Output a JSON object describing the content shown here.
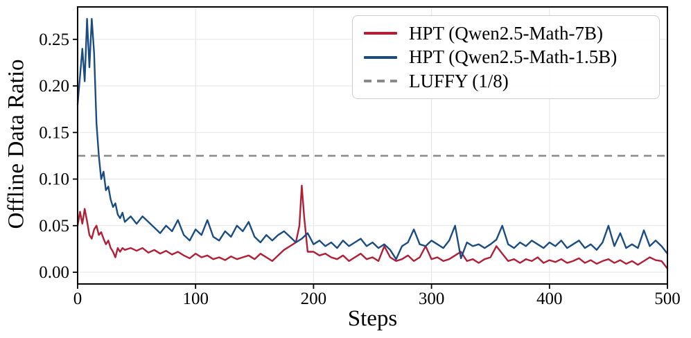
{
  "chart_data": {
    "type": "line",
    "title": "",
    "xlabel": "Steps",
    "ylabel": "Offline Data Ratio",
    "xlim": [
      0,
      500
    ],
    "ylim": [
      -0.0126,
      0.2848
    ],
    "grid": true,
    "legend_position": "upper right",
    "xticks": {
      "values": [
        0,
        100,
        200,
        300,
        400,
        500
      ],
      "labels": [
        "0",
        "100",
        "200",
        "300",
        "400",
        "500"
      ]
    },
    "yticks": {
      "values": [
        0.0,
        0.05,
        0.1,
        0.15,
        0.2,
        0.25
      ],
      "labels": [
        "0.00",
        "0.05",
        "0.10",
        "0.15",
        "0.20",
        "0.25"
      ]
    },
    "series": [
      {
        "name": "HPT (Qwen2.5-Math-7B)",
        "color": "#b01f35",
        "style": "solid",
        "x": [
          0,
          2,
          4,
          6,
          8,
          10,
          12,
          14,
          16,
          18,
          20,
          22,
          24,
          26,
          28,
          30,
          32,
          34,
          36,
          38,
          40,
          45,
          50,
          55,
          60,
          65,
          70,
          75,
          80,
          85,
          90,
          95,
          100,
          105,
          110,
          115,
          120,
          125,
          130,
          135,
          140,
          145,
          150,
          155,
          160,
          165,
          170,
          175,
          180,
          185,
          188,
          190,
          192,
          195,
          200,
          205,
          210,
          215,
          220,
          225,
          230,
          235,
          240,
          245,
          250,
          255,
          260,
          265,
          270,
          275,
          280,
          285,
          290,
          295,
          300,
          305,
          310,
          315,
          320,
          325,
          330,
          335,
          340,
          345,
          350,
          355,
          360,
          365,
          370,
          375,
          380,
          385,
          390,
          395,
          400,
          405,
          410,
          415,
          420,
          425,
          430,
          435,
          440,
          445,
          450,
          455,
          460,
          465,
          470,
          475,
          480,
          485,
          490,
          495,
          500
        ],
        "y": [
          0.05,
          0.065,
          0.052,
          0.068,
          0.055,
          0.04,
          0.036,
          0.046,
          0.05,
          0.04,
          0.043,
          0.036,
          0.03,
          0.034,
          0.026,
          0.022,
          0.016,
          0.026,
          0.022,
          0.026,
          0.024,
          0.026,
          0.023,
          0.026,
          0.021,
          0.024,
          0.02,
          0.023,
          0.019,
          0.022,
          0.018,
          0.015,
          0.02,
          0.016,
          0.018,
          0.014,
          0.016,
          0.013,
          0.017,
          0.014,
          0.016,
          0.018,
          0.014,
          0.02,
          0.016,
          0.012,
          0.018,
          0.024,
          0.028,
          0.032,
          0.05,
          0.093,
          0.06,
          0.022,
          0.022,
          0.018,
          0.02,
          0.016,
          0.014,
          0.018,
          0.012,
          0.016,
          0.02,
          0.014,
          0.016,
          0.012,
          0.028,
          0.016,
          0.012,
          0.014,
          0.018,
          0.012,
          0.016,
          0.028,
          0.014,
          0.016,
          0.012,
          0.014,
          0.018,
          0.022,
          0.012,
          0.014,
          0.01,
          0.014,
          0.016,
          0.028,
          0.02,
          0.012,
          0.014,
          0.01,
          0.014,
          0.012,
          0.016,
          0.01,
          0.013,
          0.011,
          0.014,
          0.01,
          0.012,
          0.015,
          0.01,
          0.013,
          0.009,
          0.012,
          0.014,
          0.01,
          0.013,
          0.009,
          0.012,
          0.008,
          0.012,
          0.016,
          0.013,
          0.012,
          0.004
        ]
      },
      {
        "name": "HPT (Qwen2.5-Math-1.5B)",
        "color": "#1a4c82",
        "style": "solid",
        "x": [
          0,
          2,
          4,
          6,
          8,
          10,
          12,
          14,
          16,
          18,
          20,
          22,
          24,
          26,
          28,
          30,
          32,
          34,
          36,
          38,
          40,
          45,
          50,
          55,
          60,
          65,
          70,
          75,
          80,
          85,
          90,
          95,
          100,
          105,
          110,
          115,
          120,
          125,
          130,
          135,
          140,
          145,
          150,
          155,
          160,
          165,
          170,
          175,
          180,
          185,
          190,
          195,
          200,
          205,
          210,
          215,
          220,
          225,
          230,
          235,
          240,
          245,
          250,
          255,
          260,
          265,
          270,
          275,
          280,
          285,
          290,
          295,
          300,
          305,
          310,
          315,
          320,
          325,
          330,
          335,
          340,
          345,
          350,
          355,
          360,
          365,
          370,
          375,
          380,
          385,
          390,
          395,
          400,
          405,
          410,
          415,
          420,
          425,
          430,
          435,
          440,
          445,
          450,
          455,
          460,
          465,
          470,
          475,
          480,
          485,
          490,
          495,
          500
        ],
        "y": [
          0.18,
          0.21,
          0.24,
          0.205,
          0.272,
          0.22,
          0.272,
          0.235,
          0.16,
          0.125,
          0.1,
          0.108,
          0.088,
          0.092,
          0.078,
          0.07,
          0.074,
          0.062,
          0.058,
          0.064,
          0.054,
          0.06,
          0.052,
          0.06,
          0.054,
          0.048,
          0.042,
          0.05,
          0.044,
          0.056,
          0.04,
          0.034,
          0.046,
          0.04,
          0.056,
          0.038,
          0.034,
          0.044,
          0.038,
          0.05,
          0.044,
          0.054,
          0.038,
          0.032,
          0.04,
          0.034,
          0.04,
          0.044,
          0.038,
          0.032,
          0.036,
          0.042,
          0.03,
          0.034,
          0.028,
          0.032,
          0.026,
          0.034,
          0.028,
          0.032,
          0.036,
          0.028,
          0.032,
          0.026,
          0.03,
          0.024,
          0.014,
          0.028,
          0.032,
          0.046,
          0.03,
          0.028,
          0.034,
          0.03,
          0.026,
          0.034,
          0.05,
          0.015,
          0.032,
          0.028,
          0.03,
          0.026,
          0.03,
          0.035,
          0.05,
          0.03,
          0.026,
          0.032,
          0.028,
          0.034,
          0.03,
          0.026,
          0.032,
          0.028,
          0.034,
          0.026,
          0.03,
          0.034,
          0.026,
          0.03,
          0.024,
          0.032,
          0.05,
          0.028,
          0.042,
          0.026,
          0.03,
          0.026,
          0.045,
          0.028,
          0.034,
          0.028,
          0.02
        ]
      },
      {
        "name": "LUFFY (1/8)",
        "color": "#8a8a8a",
        "style": "dashed",
        "kind": "hline",
        "y_value": 0.125
      }
    ]
  },
  "colors": {
    "grid": "#e7e7e7",
    "spine": "#000000",
    "tick": "#000000",
    "text": "#000000",
    "background": "#ffffff",
    "legend_border": "#cccccc"
  }
}
